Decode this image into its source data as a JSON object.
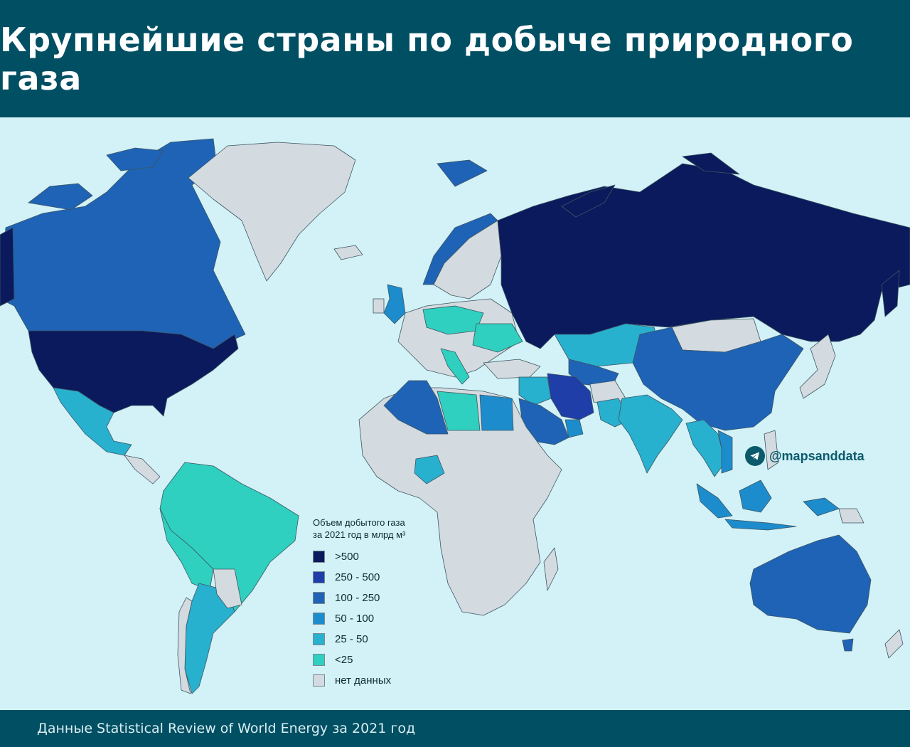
{
  "header": {
    "title": "Крупнейшие страны по добыче природного газа"
  },
  "footer": {
    "source": "Данные Statistical Review of World Energy за 2021 год"
  },
  "watermark": {
    "handle": "@mapsanddata",
    "icon": "telegram-icon"
  },
  "legend": {
    "title_line1": "Объем добытого газа",
    "title_line2": "за 2021 год в млрд м³",
    "items": [
      {
        "label": ">500",
        "color": "#0a1a5c"
      },
      {
        "label": "250 - 500",
        "color": "#1f3ea8"
      },
      {
        "label": "100 - 250",
        "color": "#1e63b6"
      },
      {
        "label": "50 - 100",
        "color": "#1d8ccc"
      },
      {
        "label": "25 - 50",
        "color": "#28b0cf"
      },
      {
        "label": "<25",
        "color": "#2fd0c0"
      },
      {
        "label": "нет данных",
        "color": "#d3dbe0"
      }
    ]
  },
  "colors": {
    "header_bg": "#004f63",
    "ocean": "#d2f2f7",
    "border": "#3d5560"
  },
  "map_regions": [
    {
      "name": "canada",
      "class": "100 - 250"
    },
    {
      "name": "usa",
      "class": ">500"
    },
    {
      "name": "mexico",
      "class": "25 - 50"
    },
    {
      "name": "greenland",
      "class": "нет данных"
    },
    {
      "name": "brazil",
      "class": "<25"
    },
    {
      "name": "argentina",
      "class": "25 - 50"
    },
    {
      "name": "russia",
      "class": ">500"
    },
    {
      "name": "norway",
      "class": "100 - 250"
    },
    {
      "name": "china",
      "class": "100 - 250"
    },
    {
      "name": "iran",
      "class": "250 - 500"
    },
    {
      "name": "saudi-arabia",
      "class": "100 - 250"
    },
    {
      "name": "algeria",
      "class": "100 - 250"
    },
    {
      "name": "egypt",
      "class": "50 - 100"
    },
    {
      "name": "india",
      "class": "25 - 50"
    },
    {
      "name": "australia",
      "class": "100 - 250"
    },
    {
      "name": "indonesia",
      "class": "50 - 100"
    },
    {
      "name": "africa-other",
      "class": "нет данных"
    }
  ]
}
